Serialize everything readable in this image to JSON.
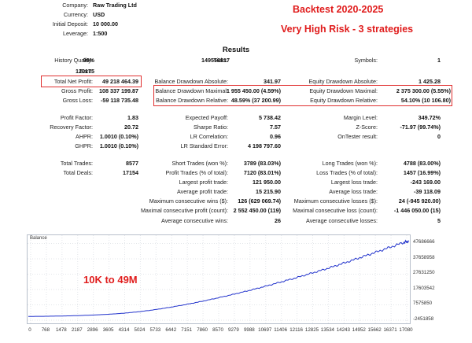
{
  "header": {
    "company_label": "Company:",
    "company_value": "Raw Trading Ltd",
    "currency_label": "Currency:",
    "currency_value": "USD",
    "deposit_label": "Initial Deposit:",
    "deposit_value": "10 000.00",
    "leverage_label": "Leverage:",
    "leverage_value": "1:500",
    "backtest_title": "Backtest 2020-2025",
    "risk_title": "Very High Risk - 3 strategies"
  },
  "results": {
    "title": "Results",
    "history_quality_label": "History Quality:",
    "history_quality_value": "99%",
    "bars_label": "Bars:",
    "bars_value": "120175",
    "ticks_label": "Ticks:",
    "ticks_value": "149556817",
    "symbols_label": "Symbols:",
    "symbols_value": "1",
    "net_profit_label": "Total Net Profit:",
    "net_profit_value": "49 218 464.39",
    "bal_dd_abs_label": "Balance Drawdown Absolute:",
    "bal_dd_abs_value": "341.97",
    "eq_dd_abs_label": "Equity Drawdown Absolute:",
    "eq_dd_abs_value": "1 425.28",
    "gross_profit_label": "Gross Profit:",
    "gross_profit_value": "108 337 199.87",
    "bal_dd_max_label": "Balance Drawdown Maximal:",
    "bal_dd_max_value": "1 955 450.00 (4.59%)",
    "eq_dd_max_label": "Equity Drawdown Maximal:",
    "eq_dd_max_value": "2 375 300.00 (5.55%)",
    "gross_loss_label": "Gross Loss:",
    "gross_loss_value": "-59 118 735.48",
    "bal_dd_rel_label": "Balance Drawdown Relative:",
    "bal_dd_rel_value": "48.59% (37 200.99)",
    "eq_dd_rel_label": "Equity Drawdown Relative:",
    "eq_dd_rel_value": "54.10% (10 106.80)",
    "profit_factor_label": "Profit Factor:",
    "profit_factor_value": "1.83",
    "expected_payoff_label": "Expected Payoff:",
    "expected_payoff_value": "5 738.42",
    "margin_level_label": "Margin Level:",
    "margin_level_value": "349.72%",
    "recovery_factor_label": "Recovery Factor:",
    "recovery_factor_value": "20.72",
    "sharpe_label": "Sharpe Ratio:",
    "sharpe_value": "7.57",
    "zscore_label": "Z-Score:",
    "zscore_value": "-71.97 (99.74%)",
    "ahpr_label": "AHPR:",
    "ahpr_value": "1.0010 (0.10%)",
    "lr_corr_label": "LR Correlation:",
    "lr_corr_value": "0.96",
    "ontester_label": "OnTester result:",
    "ontester_value": "0",
    "ghpr_label": "GHPR:",
    "ghpr_value": "1.0010 (0.10%)",
    "lr_std_label": "LR Standard Error:",
    "lr_std_value": "4 198 797.60",
    "total_trades_label": "Total Trades:",
    "total_trades_value": "8577",
    "short_trades_label": "Short Trades (won %):",
    "short_trades_value": "3789 (83.03%)",
    "long_trades_label": "Long Trades (won %):",
    "long_trades_value": "4788 (83.00%)",
    "total_deals_label": "Total Deals:",
    "total_deals_value": "17154",
    "profit_trades_label": "Profit Trades (% of total):",
    "profit_trades_value": "7120 (83.01%)",
    "loss_trades_label": "Loss Trades (% of total):",
    "loss_trades_value": "1457 (16.99%)",
    "largest_profit_label": "Largest profit trade:",
    "largest_profit_value": "121 950.00",
    "largest_loss_label": "Largest loss trade:",
    "largest_loss_value": "-243 169.00",
    "avg_profit_label": "Average profit trade:",
    "avg_profit_value": "15 215.90",
    "avg_loss_label": "Average loss trade:",
    "avg_loss_value": "-39 118.09",
    "max_cons_wins_label": "Maximum consecutive wins ($):",
    "max_cons_wins_value": "126 (629 069.74)",
    "max_cons_losses_label": "Maximum consecutive losses ($):",
    "max_cons_losses_value": "24 (-945 920.00)",
    "max_cons_profit_label": "Maximal consecutive profit (count):",
    "max_cons_profit_value": "2 552 450.00 (119)",
    "max_cons_loss_label": "Maximal consecutive loss (count):",
    "max_cons_loss_value": "-1 446 050.00 (15)",
    "avg_cons_wins_label": "Average consecutive wins:",
    "avg_cons_wins_value": "26",
    "avg_cons_losses_label": "Average consecutive losses:",
    "avg_cons_losses_value": "5"
  },
  "chart_data": {
    "type": "line",
    "title": "Balance",
    "annotation": "10K to 49M",
    "x_ticks": [
      "0",
      "768",
      "1478",
      "2187",
      "2896",
      "3605",
      "4314",
      "5024",
      "5733",
      "6442",
      "7151",
      "7860",
      "8570",
      "9279",
      "9988",
      "10697",
      "11406",
      "12116",
      "12825",
      "13534",
      "14243",
      "14952",
      "15662",
      "16371",
      "17080"
    ],
    "y_ticks": [
      "47686666",
      "37658958",
      "27631250",
      "17603542",
      "7575850",
      "-2451858"
    ],
    "ylim": [
      -2451858,
      50000000
    ],
    "xlim": [
      0,
      17154
    ],
    "series": [
      {
        "color": "#2233cc",
        "x": [
          0,
          700,
          1500,
          2200,
          2900,
          3600,
          4300,
          5000,
          5700,
          6400,
          7100,
          7800,
          8500,
          9200,
          9900,
          10600,
          11300,
          12000,
          12700,
          13400,
          14100,
          14800,
          15500,
          16200,
          16900,
          17154
        ],
        "y": [
          10000,
          90000,
          260000,
          520000,
          900000,
          1400000,
          2100000,
          3100000,
          4400000,
          6000000,
          7800000,
          9800000,
          12000000,
          14300000,
          16800000,
          19400000,
          22200000,
          25000000,
          28000000,
          31000000,
          34300000,
          37700000,
          41200000,
          44700000,
          48300000,
          49228464
        ]
      }
    ]
  },
  "colors": {
    "accent_red": "#e01c1c",
    "balance_line": "#2233cc"
  }
}
